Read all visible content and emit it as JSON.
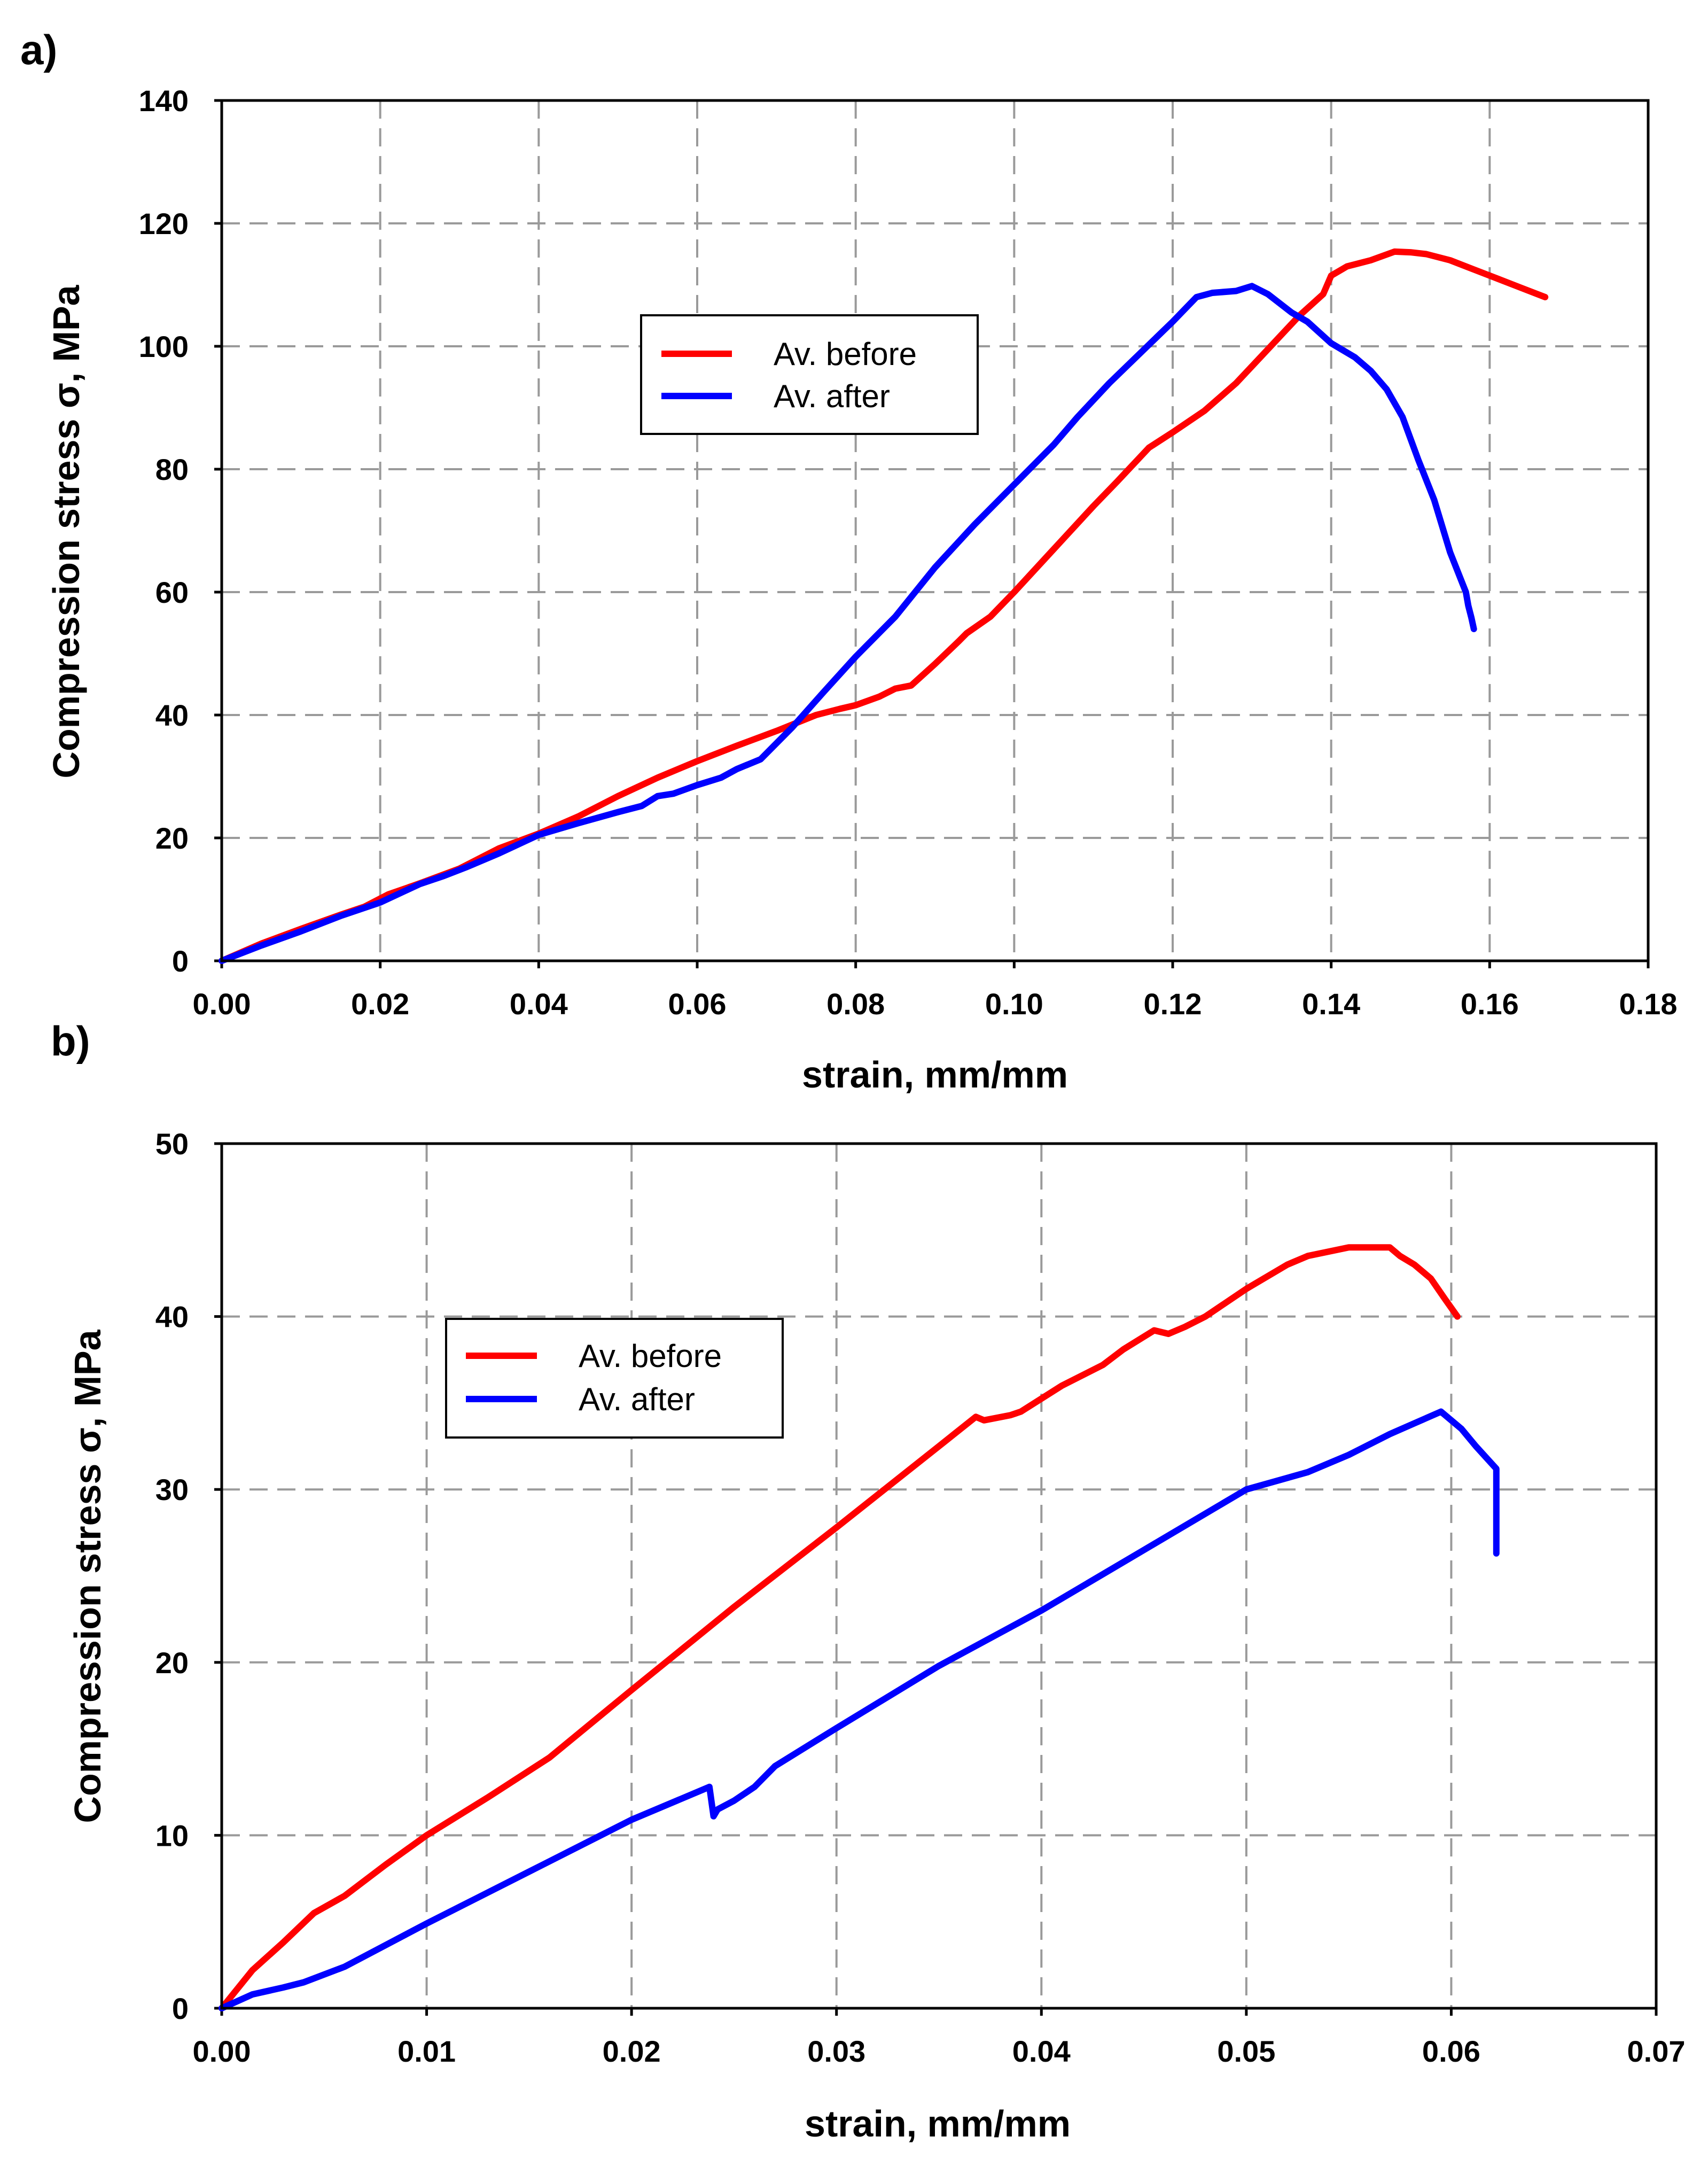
{
  "chart_data": [
    {
      "panel_label": "a)",
      "type": "line",
      "xlabel": "strain, mm/mm",
      "ylabel": "Compression stress σ, MPa",
      "xlim": [
        0,
        0.18
      ],
      "ylim": [
        0,
        140
      ],
      "xticks": [
        0.0,
        0.02,
        0.04,
        0.06,
        0.08,
        0.1,
        0.12,
        0.14,
        0.16,
        0.18
      ],
      "xtick_labels": [
        "0.00",
        "0.02",
        "0.04",
        "0.06",
        "0.08",
        "0.10",
        "0.12",
        "0.14",
        "0.16",
        "0.18"
      ],
      "yticks": [
        0,
        20,
        40,
        60,
        80,
        100,
        120,
        140
      ],
      "ytick_labels": [
        "0",
        "20",
        "40",
        "60",
        "80",
        "100",
        "120",
        "140"
      ],
      "grid": true,
      "legend_position": "upper-center",
      "series": [
        {
          "name": "Av. before",
          "color": "#ff0000",
          "x": [
            0,
            0.005,
            0.01,
            0.015,
            0.018,
            0.021,
            0.025,
            0.03,
            0.035,
            0.04,
            0.045,
            0.05,
            0.055,
            0.06,
            0.065,
            0.07,
            0.075,
            0.078,
            0.08,
            0.083,
            0.085,
            0.087,
            0.09,
            0.093,
            0.094,
            0.097,
            0.1,
            0.105,
            0.11,
            0.113,
            0.117,
            0.12,
            0.124,
            0.128,
            0.132,
            0.136,
            0.139,
            0.14,
            0.142,
            0.145,
            0.148,
            0.15,
            0.152,
            0.155,
            0.158,
            0.161,
            0.164,
            0.167
          ],
          "y": [
            0,
            2.8,
            5.2,
            7.5,
            8.8,
            10.8,
            12.6,
            15.0,
            18.3,
            20.7,
            23.5,
            26.8,
            29.8,
            32.5,
            35.0,
            37.4,
            40.0,
            41.0,
            41.6,
            43.0,
            44.3,
            44.8,
            48.3,
            52.0,
            53.3,
            56.0,
            60.0,
            67.0,
            74.0,
            78.0,
            83.5,
            86.0,
            89.5,
            94.0,
            99.5,
            105.0,
            108.5,
            111.5,
            113.0,
            114.0,
            115.4,
            115.3,
            115.0,
            114.0,
            112.5,
            111.0,
            109.5,
            108.0
          ]
        },
        {
          "name": "Av. after",
          "color": "#0000ff",
          "x": [
            0,
            0.005,
            0.01,
            0.015,
            0.02,
            0.025,
            0.028,
            0.031,
            0.035,
            0.04,
            0.045,
            0.05,
            0.053,
            0.055,
            0.057,
            0.06,
            0.063,
            0.065,
            0.068,
            0.072,
            0.076,
            0.08,
            0.085,
            0.09,
            0.095,
            0.1,
            0.105,
            0.108,
            0.112,
            0.116,
            0.12,
            0.123,
            0.125,
            0.128,
            0.13,
            0.132,
            0.135,
            0.137,
            0.14,
            0.143,
            0.145,
            0.147,
            0.149,
            0.151,
            0.153,
            0.155,
            0.157,
            0.1573,
            0.1577,
            0.158
          ],
          "y": [
            0,
            2.5,
            4.8,
            7.3,
            9.5,
            12.5,
            13.8,
            15.3,
            17.5,
            20.5,
            22.4,
            24.2,
            25.2,
            26.8,
            27.2,
            28.6,
            29.8,
            31.2,
            32.8,
            38.0,
            43.8,
            49.5,
            56.0,
            64.0,
            71.0,
            77.5,
            84.0,
            88.5,
            94.0,
            99.0,
            104.0,
            108.0,
            108.7,
            109.0,
            109.8,
            108.5,
            105.5,
            104.0,
            100.5,
            98.2,
            96.0,
            93.0,
            88.5,
            81.5,
            75.0,
            66.5,
            60.0,
            57.8,
            55.8,
            54.0
          ]
        }
      ]
    },
    {
      "panel_label": "b)",
      "type": "line",
      "xlabel": "strain, mm/mm",
      "ylabel": "Compression stress σ, MPa",
      "xlim": [
        0,
        0.07
      ],
      "ylim": [
        0,
        50
      ],
      "xticks": [
        0.0,
        0.01,
        0.02,
        0.03,
        0.04,
        0.05,
        0.06,
        0.07
      ],
      "xtick_labels": [
        "0.00",
        "0.01",
        "0.02",
        "0.03",
        "0.04",
        "0.05",
        "0.06",
        "0.07"
      ],
      "yticks": [
        0,
        10,
        20,
        30,
        40,
        50
      ],
      "ytick_labels": [
        "0",
        "10",
        "20",
        "30",
        "40",
        "50"
      ],
      "grid": true,
      "legend_position": "upper-left",
      "series": [
        {
          "name": "Av. before",
          "color": "#ff0000",
          "x": [
            0,
            0.0015,
            0.003,
            0.0045,
            0.006,
            0.008,
            0.01,
            0.013,
            0.016,
            0.02,
            0.025,
            0.03,
            0.035,
            0.0368,
            0.0372,
            0.0385,
            0.039,
            0.041,
            0.043,
            0.044,
            0.0455,
            0.0462,
            0.047,
            0.048,
            0.05,
            0.052,
            0.053,
            0.055,
            0.056,
            0.057,
            0.0575,
            0.0582,
            0.059,
            0.0597,
            0.0603
          ],
          "y": [
            0,
            2.2,
            3.8,
            5.5,
            6.5,
            8.3,
            10.0,
            12.2,
            14.5,
            18.4,
            23.2,
            27.8,
            32.5,
            34.2,
            34.0,
            34.3,
            34.5,
            36.0,
            37.2,
            38.1,
            39.2,
            39.0,
            39.4,
            40.0,
            41.6,
            43.0,
            43.5,
            44.0,
            44.0,
            44.0,
            43.5,
            43.0,
            42.2,
            41.0,
            40.0
          ]
        },
        {
          "name": "Av. after",
          "color": "#0000ff",
          "x": [
            0,
            0.0015,
            0.003,
            0.004,
            0.006,
            0.01,
            0.015,
            0.02,
            0.0238,
            0.024,
            0.0242,
            0.025,
            0.026,
            0.027,
            0.03,
            0.035,
            0.04,
            0.045,
            0.05,
            0.053,
            0.055,
            0.057,
            0.0595,
            0.0605,
            0.0612,
            0.0622,
            0.0622
          ],
          "y": [
            0,
            0.8,
            1.2,
            1.5,
            2.4,
            4.9,
            7.9,
            10.9,
            12.8,
            11.1,
            11.5,
            12.0,
            12.8,
            14.0,
            16.2,
            19.8,
            23.0,
            26.5,
            30.0,
            31.0,
            32.0,
            33.2,
            34.5,
            33.5,
            32.5,
            31.2,
            26.3
          ]
        }
      ]
    }
  ]
}
